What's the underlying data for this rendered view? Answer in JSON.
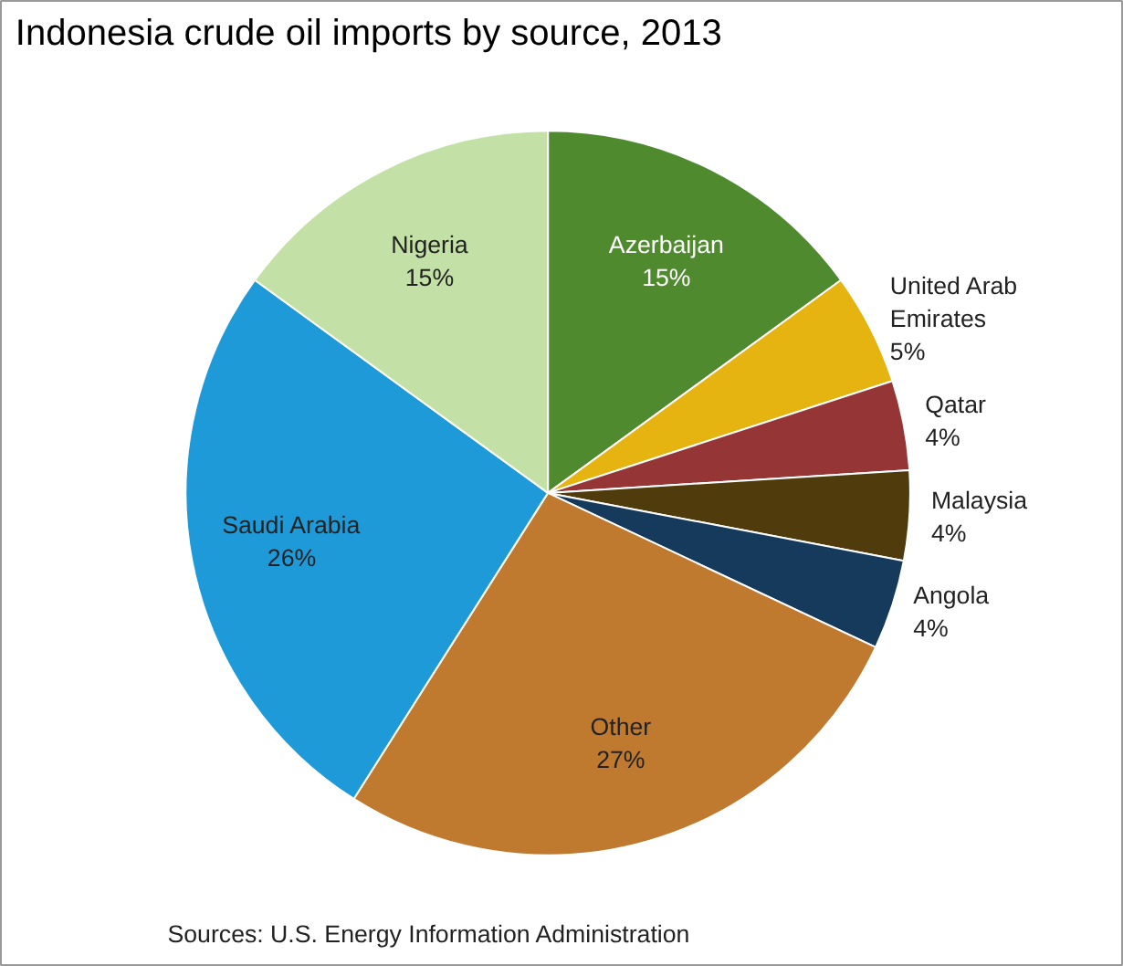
{
  "chart_data": {
    "type": "pie",
    "title": "Indonesia crude oil imports by source, 2013",
    "categories": [
      "Azerbaijan",
      "United Arab Emirates",
      "Qatar",
      "Malaysia",
      "Angola",
      "Other",
      "Saudi Arabia",
      "Nigeria"
    ],
    "values": [
      15,
      5,
      4,
      4,
      4,
      27,
      26,
      15
    ],
    "value_labels": [
      "15%",
      "5%",
      "4%",
      "4%",
      "4%",
      "27%",
      "26%",
      "15%"
    ],
    "colors": [
      "#4f8a2f",
      "#e6b410",
      "#953535",
      "#4f3b0c",
      "#163a5c",
      "#c07a30",
      "#1e9ad8",
      "#c3e0a6"
    ],
    "legend": false,
    "annotations": [
      "Sources: U.S. Energy Information Administration"
    ]
  }
}
